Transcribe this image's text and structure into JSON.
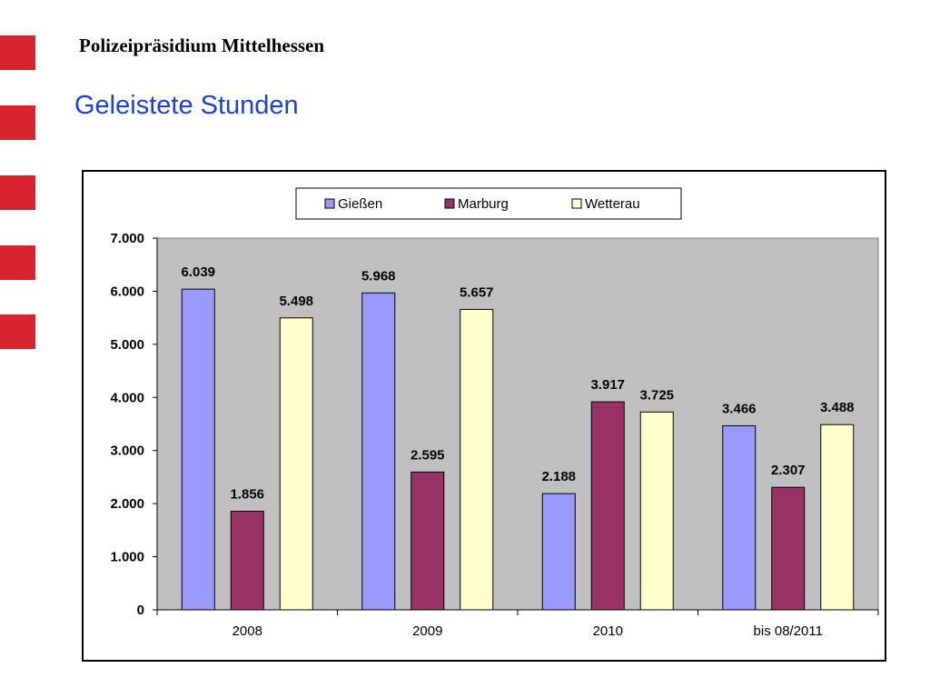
{
  "header": {
    "organization": "Polizeipräsidium Mittelhessen",
    "title": "Geleistete Stunden"
  },
  "colors": {
    "accent": "#d9232e",
    "title_blue": "#1a3fe6",
    "plot_bg": "#c0c0c0"
  },
  "chart_data": {
    "type": "bar",
    "categories": [
      "2008",
      "2009",
      "2010",
      "bis 08/2011"
    ],
    "series": [
      {
        "name": "Gießen",
        "color": "#9999ff",
        "values": [
          6039,
          5968,
          2188,
          3466
        ],
        "labels": [
          "6.039",
          "5.968",
          "2.188",
          "3.466"
        ]
      },
      {
        "name": "Marburg",
        "color": "#993366",
        "values": [
          1856,
          2595,
          3917,
          2307
        ],
        "labels": [
          "1.856",
          "2.595",
          "3.917",
          "2.307"
        ]
      },
      {
        "name": "Wetterau",
        "color": "#ffffcc",
        "values": [
          5498,
          5657,
          3725,
          3488
        ],
        "labels": [
          "5.498",
          "5.657",
          "3.725",
          "3.488"
        ]
      }
    ],
    "ylim": [
      0,
      7000
    ],
    "yticks": [
      0,
      1000,
      2000,
      3000,
      4000,
      5000,
      6000,
      7000
    ],
    "ytick_labels": [
      "0",
      "1.000",
      "2.000",
      "3.000",
      "4.000",
      "5.000",
      "6.000",
      "7.000"
    ],
    "grid": false,
    "legend_position": "top-center"
  }
}
